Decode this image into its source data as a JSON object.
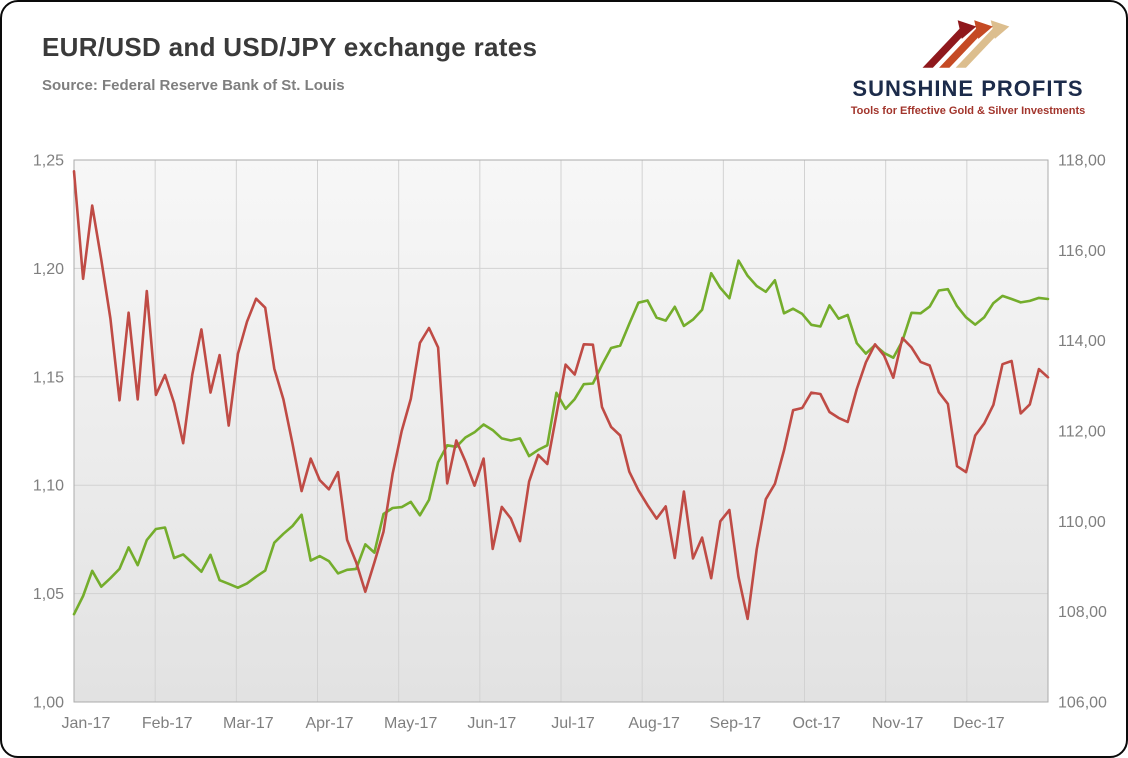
{
  "header": {
    "title": "EUR/USD and USD/JPY exchange rates",
    "source": "Source: Federal Reserve Bank of St. Louis"
  },
  "logo": {
    "name": "SUNSHINE PROFITS",
    "tagline": "Tools for Effective Gold & Silver Investments",
    "name_color": "#1c2b4a",
    "tagline_color": "#a2352c",
    "arrow_colors": [
      "#8f181c",
      "#c54a24",
      "#dcbe8e"
    ]
  },
  "chart_data": {
    "type": "line",
    "title": "EUR/USD and USD/JPY exchange rates",
    "source": "Source: Federal Reserve Bank of St. Louis",
    "grid": true,
    "legend": "none",
    "x_tick_labels": [
      "Jan-17",
      "Feb-17",
      "Mar-17",
      "Apr-17",
      "May-17",
      "Jun-17",
      "Jul-17",
      "Aug-17",
      "Sep-17",
      "Oct-17",
      "Nov-17",
      "Dec-17"
    ],
    "left_axis": {
      "series": "EUR/USD",
      "min": 1.0,
      "max": 1.25,
      "tick_values": [
        1.0,
        1.05,
        1.1,
        1.15,
        1.2,
        1.25
      ],
      "tick_labels": [
        "1,00",
        "1,05",
        "1,10",
        "1,15",
        "1,20",
        "1,25"
      ]
    },
    "right_axis": {
      "series": "USD/JPY",
      "min": 106,
      "max": 118,
      "tick_values": [
        106,
        108,
        110,
        112,
        114,
        116,
        118
      ],
      "tick_labels": [
        "106,00",
        "108,00",
        "110,00",
        "112,00",
        "114,00",
        "116,00",
        "118,00"
      ]
    },
    "series": [
      {
        "name": "EUR/USD",
        "axis": "left",
        "color": "#74ad2c",
        "values": [
          1.0405,
          1.0489,
          1.0605,
          1.0532,
          1.0571,
          1.0614,
          1.0713,
          1.0631,
          1.0747,
          1.0798,
          1.0805,
          1.0664,
          1.0681,
          1.0641,
          1.0601,
          1.0679,
          1.0562,
          1.0545,
          1.0527,
          1.0547,
          1.0578,
          1.0606,
          1.0735,
          1.0776,
          1.0812,
          1.0864,
          1.0652,
          1.0673,
          1.065,
          1.0593,
          1.061,
          1.0614,
          1.0727,
          1.0689,
          1.0867,
          1.0895,
          1.0899,
          1.0923,
          1.0861,
          1.0932,
          1.1106,
          1.1184,
          1.1177,
          1.122,
          1.1244,
          1.128,
          1.1254,
          1.1216,
          1.1206,
          1.1216,
          1.1134,
          1.1163,
          1.1184,
          1.1426,
          1.1352,
          1.1397,
          1.1466,
          1.1469,
          1.1555,
          1.1633,
          1.1644,
          1.1745,
          1.1842,
          1.1852,
          1.1773,
          1.1759,
          1.1823,
          1.1735,
          1.1764,
          1.1809,
          1.1978,
          1.191,
          1.1862,
          1.2036,
          1.1966,
          1.1919,
          1.1892,
          1.1945,
          1.1793,
          1.1814,
          1.179,
          1.174,
          1.1732,
          1.183,
          1.1768,
          1.1785,
          1.1655,
          1.1607,
          1.1646,
          1.161,
          1.1588,
          1.1665,
          1.1795,
          1.1793,
          1.1824,
          1.1898,
          1.1904,
          1.1826,
          1.1774,
          1.1741,
          1.1775,
          1.184,
          1.1873,
          1.1859,
          1.1843,
          1.185,
          1.1864,
          1.1859
        ]
      },
      {
        "name": "USD/JPY",
        "axis": "right",
        "color": "#bf4b45",
        "values": [
          117.75,
          115.37,
          116.99,
          115.79,
          114.49,
          112.68,
          114.62,
          112.7,
          115.1,
          112.8,
          113.24,
          112.62,
          111.73,
          113.25,
          114.25,
          112.85,
          113.68,
          112.12,
          113.71,
          114.42,
          114.93,
          114.73,
          113.38,
          112.7,
          111.72,
          110.67,
          111.39,
          110.91,
          110.71,
          111.09,
          109.59,
          109.09,
          108.44,
          109.09,
          109.77,
          111.05,
          112.0,
          112.71,
          113.95,
          114.28,
          113.85,
          110.84,
          111.79,
          111.33,
          110.79,
          111.39,
          109.39,
          110.32,
          110.06,
          109.56,
          110.88,
          111.47,
          111.27,
          112.36,
          113.47,
          113.25,
          113.92,
          113.91,
          112.53,
          112.09,
          111.9,
          111.1,
          110.69,
          110.36,
          110.06,
          110.33,
          109.19,
          110.66,
          109.18,
          109.64,
          108.74,
          110.0,
          110.25,
          108.77,
          107.84,
          109.38,
          110.49,
          110.83,
          111.57,
          112.46,
          112.51,
          112.85,
          112.82,
          112.42,
          112.29,
          112.2,
          112.93,
          113.52,
          113.92,
          113.67,
          113.18,
          114.06,
          113.85,
          113.53,
          113.45,
          112.86,
          112.6,
          111.22,
          111.09,
          111.9,
          112.17,
          112.58,
          113.48,
          113.55,
          112.39,
          112.59,
          113.37,
          113.19
        ]
      }
    ]
  }
}
